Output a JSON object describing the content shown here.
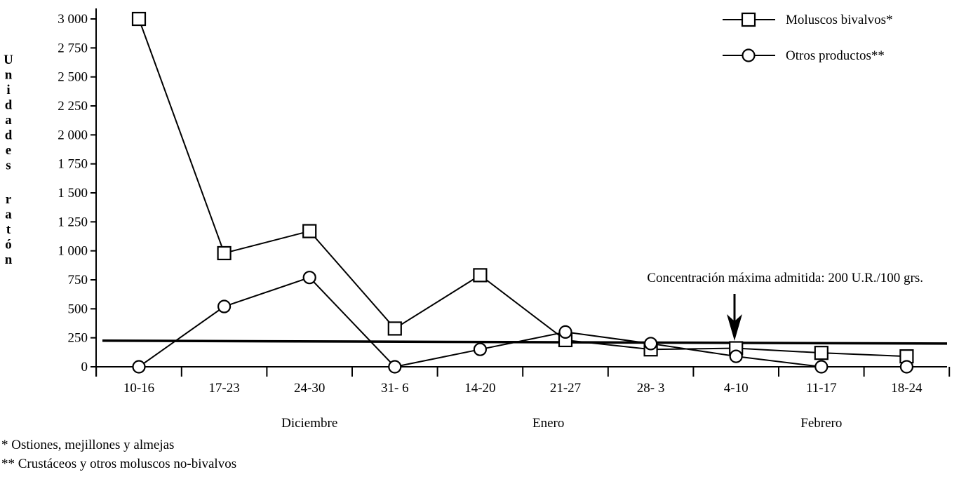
{
  "chart_data": {
    "type": "line",
    "ylabel": "Unidades ratón",
    "ylim": [
      0,
      3000
    ],
    "y_ticks": [
      {
        "value": 0,
        "label": "0"
      },
      {
        "value": 250,
        "label": "250"
      },
      {
        "value": 500,
        "label": "500"
      },
      {
        "value": 750,
        "label": "750"
      },
      {
        "value": 1000,
        "label": "1 000"
      },
      {
        "value": 1250,
        "label": "1 250"
      },
      {
        "value": 1500,
        "label": "1 500"
      },
      {
        "value": 1750,
        "label": "1 750"
      },
      {
        "value": 2000,
        "label": "2 000"
      },
      {
        "value": 2250,
        "label": "2 250"
      },
      {
        "value": 2500,
        "label": "2 500"
      },
      {
        "value": 2750,
        "label": "2 750"
      },
      {
        "value": 3000,
        "label": "3 000"
      }
    ],
    "categories": [
      "10-16",
      "17-23",
      "24-30",
      "31- 6",
      "14-20",
      "21-27",
      "28- 3",
      "4-10",
      "11-17",
      "18-24"
    ],
    "months": [
      {
        "label": "Diciembre",
        "at_category": 2
      },
      {
        "label": "Enero",
        "at_category": 4.8
      },
      {
        "label": "Febrero",
        "at_category": 8
      }
    ],
    "series": [
      {
        "name": "Moluscos bivalvos*",
        "marker": "square",
        "values": [
          3000,
          980,
          1170,
          330,
          790,
          230,
          150,
          160,
          120,
          90
        ]
      },
      {
        "name": "Otros productos**",
        "marker": "circle",
        "values": [
          0,
          520,
          770,
          0,
          150,
          300,
          200,
          90,
          0,
          0
        ]
      }
    ],
    "reference_line": {
      "label": "Concentración máxima admitida: 200 U.R./100 grs.",
      "value_start": 225,
      "value_end": 200
    },
    "legend_position": "top-right",
    "grid": false
  },
  "footnotes": [
    "* Ostiones, mejillones y almejas",
    "** Crustáceos y otros moluscos no-bivalvos"
  ],
  "colors": {
    "ink": "#000000",
    "background": "#ffffff"
  }
}
